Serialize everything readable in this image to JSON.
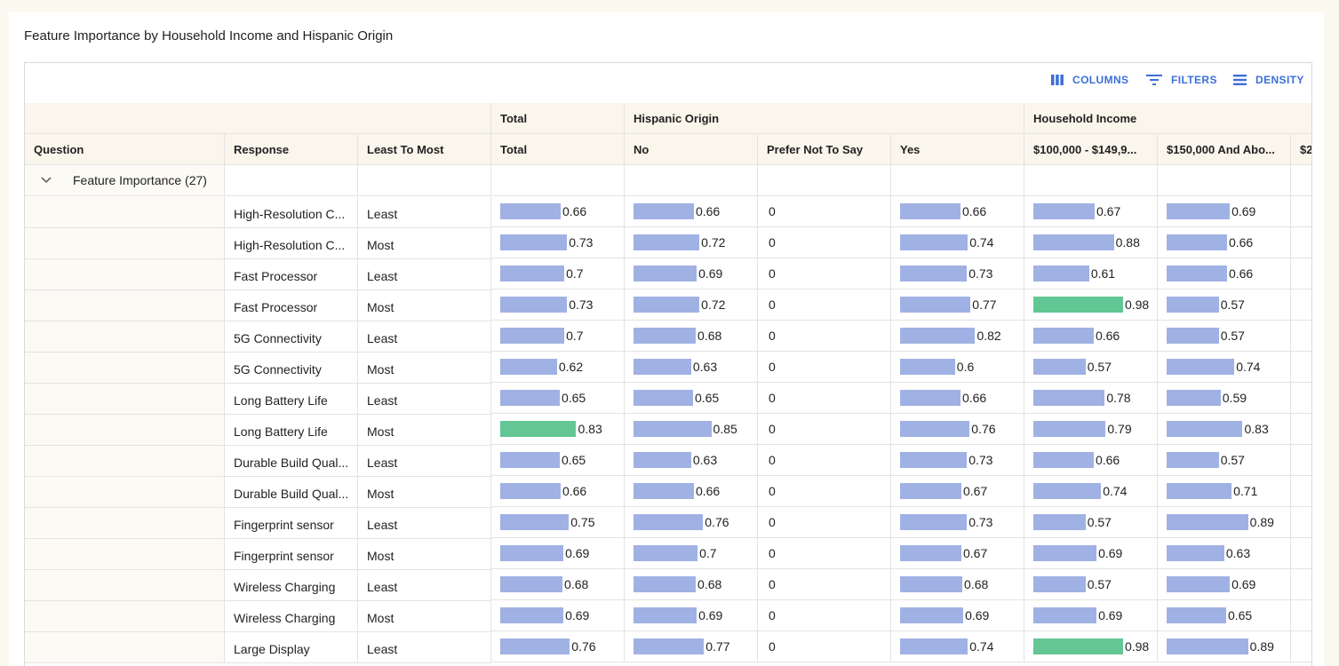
{
  "title": "Feature Importance by Household Income and Hispanic Origin",
  "toolbar": [
    "COLUMNS",
    "FILTERS",
    "DENSITY"
  ],
  "headers": {
    "question": "Question",
    "response": "Response",
    "least_to_most": "Least To Most"
  },
  "group_row": "Feature Importance (27)",
  "bar_color": "#a0b1e3",
  "highlight_color": "#62c794",
  "rows": [
    {
      "response": "High-Resolution C...",
      "level": "Least"
    },
    {
      "response": "High-Resolution C...",
      "level": "Most"
    },
    {
      "response": "Fast Processor",
      "level": "Least"
    },
    {
      "response": "Fast Processor",
      "level": "Most"
    },
    {
      "response": "5G Connectivity",
      "level": "Least"
    },
    {
      "response": "5G Connectivity",
      "level": "Most"
    },
    {
      "response": "Long Battery Life",
      "level": "Least"
    },
    {
      "response": "Long Battery Life",
      "level": "Most"
    },
    {
      "response": "Durable Build Qual...",
      "level": "Least"
    },
    {
      "response": "Durable Build Qual...",
      "level": "Most"
    },
    {
      "response": "Fingerprint sensor",
      "level": "Least"
    },
    {
      "response": "Fingerprint sensor",
      "level": "Most"
    },
    {
      "response": "Wireless Charging",
      "level": "Least"
    },
    {
      "response": "Wireless Charging",
      "level": "Most"
    },
    {
      "response": "Large Display",
      "level": "Least"
    }
  ],
  "column_groups": [
    {
      "name": "Total",
      "columns": [
        {
          "name": "Total",
          "values": [
            0.66,
            0.73,
            0.7,
            0.73,
            0.7,
            0.62,
            0.65,
            0.83,
            0.65,
            0.66,
            0.75,
            0.69,
            0.68,
            0.69,
            0.76
          ],
          "highlighted": [
            7
          ]
        }
      ]
    },
    {
      "name": "Hispanic Origin",
      "columns": [
        {
          "name": "No",
          "values": [
            0.66,
            0.72,
            0.69,
            0.72,
            0.68,
            0.63,
            0.65,
            0.85,
            0.63,
            0.66,
            0.76,
            0.7,
            0.68,
            0.69,
            0.77
          ],
          "highlighted": []
        },
        {
          "name": "Prefer Not To Say",
          "values": [
            0,
            0,
            0,
            0,
            0,
            0,
            0,
            0,
            0,
            0,
            0,
            0,
            0,
            0,
            0
          ],
          "highlighted": []
        },
        {
          "name": "Yes",
          "values": [
            0.66,
            0.74,
            0.73,
            0.77,
            0.82,
            0.6,
            0.66,
            0.76,
            0.73,
            0.67,
            0.73,
            0.67,
            0.68,
            0.69,
            0.74
          ],
          "highlighted": []
        }
      ]
    },
    {
      "name": "Household Income",
      "columns": [
        {
          "name": "$100,000 - $149,9...",
          "values": [
            0.67,
            0.88,
            0.61,
            0.98,
            0.66,
            0.57,
            0.78,
            0.79,
            0.66,
            0.74,
            0.57,
            0.69,
            0.57,
            0.69,
            0.98
          ],
          "highlighted": [
            3,
            14
          ]
        },
        {
          "name": "$150,000 And Abo...",
          "values": [
            0.69,
            0.66,
            0.66,
            0.57,
            0.57,
            0.74,
            0.59,
            0.83,
            0.57,
            0.71,
            0.89,
            0.63,
            0.69,
            0.65,
            0.89
          ],
          "highlighted": []
        },
        {
          "name": "$2"
        }
      ]
    }
  ]
}
